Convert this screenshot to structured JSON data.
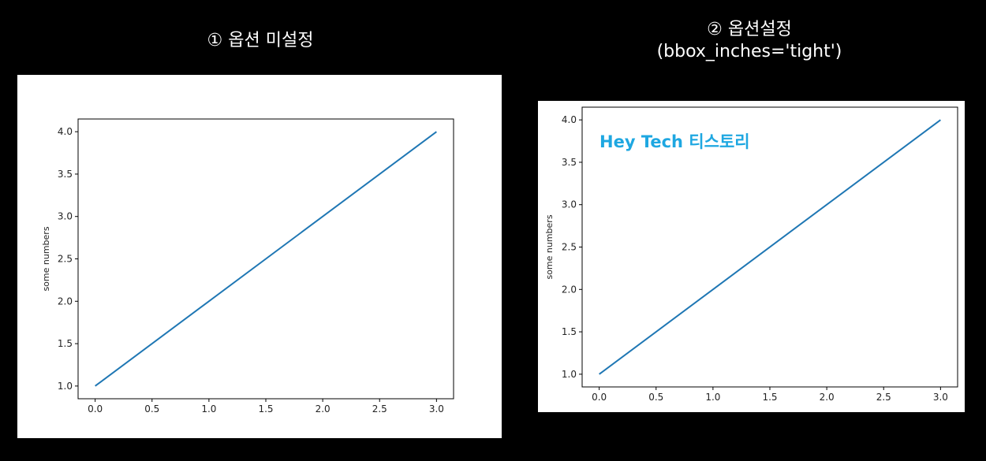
{
  "headings": {
    "left": "① 옵션 미설정",
    "right_line1": "② 옵션설정",
    "right_line2": "(bbox_inches='tight')"
  },
  "watermark": "Hey Tech 티스토리",
  "colors": {
    "background": "#000000",
    "panel": "#ffffff",
    "line": "#1f77b4",
    "watermark": "#1ea7e1"
  },
  "chart_data": [
    {
      "type": "line",
      "x": [
        0.0,
        1.0,
        2.0,
        3.0
      ],
      "series": [
        {
          "values": [
            1.0,
            2.0,
            3.0,
            4.0
          ]
        }
      ],
      "ylabel": "some numbers",
      "xlim": [
        -0.15,
        3.15
      ],
      "ylim": [
        0.85,
        4.15
      ],
      "xticks": [
        "0.0",
        "0.5",
        "1.0",
        "1.5",
        "2.0",
        "2.5",
        "3.0"
      ],
      "yticks": [
        "1.0",
        "1.5",
        "2.0",
        "2.5",
        "3.0",
        "3.5",
        "4.0"
      ],
      "grid": false
    },
    {
      "type": "line",
      "x": [
        0.0,
        1.0,
        2.0,
        3.0
      ],
      "series": [
        {
          "values": [
            1.0,
            2.0,
            3.0,
            4.0
          ]
        }
      ],
      "ylabel": "some numbers",
      "xlim": [
        -0.15,
        3.15
      ],
      "ylim": [
        0.85,
        4.15
      ],
      "xticks": [
        "0.0",
        "0.5",
        "1.0",
        "1.5",
        "2.0",
        "2.5",
        "3.0"
      ],
      "yticks": [
        "1.0",
        "1.5",
        "2.0",
        "2.5",
        "3.0",
        "3.5",
        "4.0"
      ],
      "grid": false
    }
  ]
}
